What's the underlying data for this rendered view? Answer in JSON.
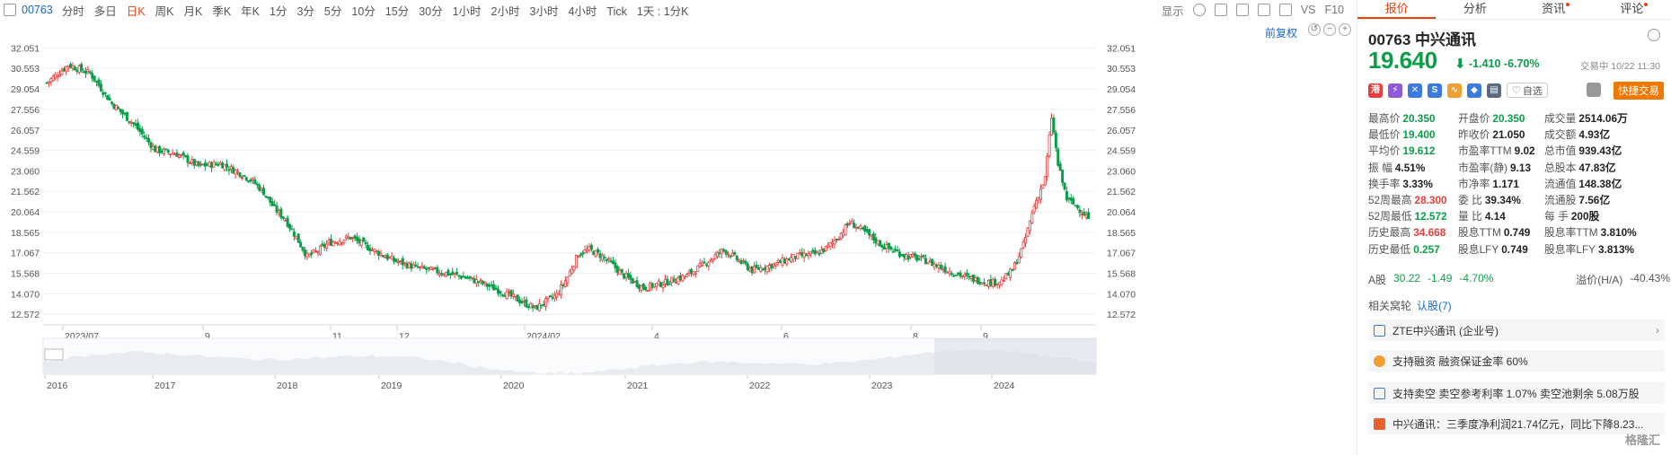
{
  "toolbar": {
    "code": "00763",
    "timeframes": [
      "分时",
      "多日",
      "日K",
      "周K",
      "月K",
      "季K",
      "年K",
      "1分",
      "3分",
      "5分",
      "10分",
      "15分",
      "30分",
      "1小时",
      "2小时",
      "3小时",
      "4小时",
      "Tick",
      "1天 : 1分K"
    ],
    "active_timeframe": "日K",
    "display_label": "显示",
    "vs_label": "VS",
    "f10_label": "F10"
  },
  "chart": {
    "restore_label": "前复权",
    "y_ticks": [
      "32.051",
      "30.553",
      "29.054",
      "27.556",
      "26.057",
      "24.559",
      "23.060",
      "21.562",
      "20.064",
      "18.565",
      "17.067",
      "15.568",
      "14.070",
      "12.572"
    ],
    "x_ticks": [
      "2023/07",
      "9",
      "11",
      "12",
      "2024/02",
      "4",
      "6",
      "8",
      "9"
    ],
    "nav_years": [
      "2016",
      "2017",
      "2018",
      "2019",
      "2020",
      "2021",
      "2022",
      "2023",
      "2024"
    ],
    "colors": {
      "up": "#e63d3d",
      "down": "#0a9e49",
      "grid": "#eef0f3"
    }
  },
  "chart_data": {
    "type": "candlestick",
    "ylim": [
      11.8,
      32.8
    ],
    "y_ticks": [
      32.051,
      30.553,
      29.054,
      27.556,
      26.057,
      24.559,
      23.06,
      21.562,
      20.064,
      18.565,
      17.067,
      15.568,
      14.07,
      12.572
    ],
    "x_ticks": [
      "2023/07",
      "9",
      "11",
      "12",
      "2024/02",
      "4",
      "6",
      "8",
      "9"
    ],
    "price_path": [
      [
        0,
        29.5
      ],
      [
        10,
        30.8
      ],
      [
        20,
        30.2
      ],
      [
        30,
        28.0
      ],
      [
        40,
        26.5
      ],
      [
        50,
        24.6
      ],
      [
        60,
        24.3
      ],
      [
        70,
        23.4
      ],
      [
        80,
        23.6
      ],
      [
        90,
        22.8
      ],
      [
        95,
        22.3
      ],
      [
        100,
        21.5
      ],
      [
        105,
        20.3
      ],
      [
        110,
        19.5
      ],
      [
        115,
        18.2
      ],
      [
        120,
        16.8
      ],
      [
        125,
        17.2
      ],
      [
        130,
        17.8
      ],
      [
        140,
        18.2
      ],
      [
        150,
        17.3
      ],
      [
        160,
        16.5
      ],
      [
        170,
        16.0
      ],
      [
        180,
        15.7
      ],
      [
        190,
        15.4
      ],
      [
        200,
        14.9
      ],
      [
        210,
        14.2
      ],
      [
        220,
        13.4
      ],
      [
        225,
        13.0
      ],
      [
        230,
        13.5
      ],
      [
        235,
        14.0
      ],
      [
        240,
        15.3
      ],
      [
        245,
        17.0
      ],
      [
        250,
        17.3
      ],
      [
        255,
        16.9
      ],
      [
        260,
        16.3
      ],
      [
        265,
        15.5
      ],
      [
        275,
        14.5
      ],
      [
        285,
        14.9
      ],
      [
        295,
        15.4
      ],
      [
        305,
        16.5
      ],
      [
        312,
        17.3
      ],
      [
        318,
        16.6
      ],
      [
        325,
        15.8
      ],
      [
        335,
        16.2
      ],
      [
        345,
        16.8
      ],
      [
        355,
        17.0
      ],
      [
        360,
        17.5
      ],
      [
        365,
        18.3
      ],
      [
        370,
        19.3
      ],
      [
        375,
        18.8
      ],
      [
        385,
        17.6
      ],
      [
        395,
        16.9
      ],
      [
        405,
        16.5
      ],
      [
        415,
        15.8
      ],
      [
        425,
        15.2
      ],
      [
        435,
        14.9
      ],
      [
        440,
        15.0
      ],
      [
        445,
        15.8
      ],
      [
        450,
        17.6
      ],
      [
        455,
        20.5
      ],
      [
        460,
        22.5
      ],
      [
        463,
        27.0
      ],
      [
        466,
        23.5
      ],
      [
        470,
        21.0
      ],
      [
        475,
        20.4
      ],
      [
        480,
        19.6
      ]
    ],
    "last": {
      "price": 19.64,
      "change": -1.41,
      "change_pct": -6.7
    }
  },
  "panel": {
    "tabs": [
      {
        "label": "报价",
        "active": true,
        "dot": false
      },
      {
        "label": "分析",
        "active": false,
        "dot": false
      },
      {
        "label": "资讯",
        "active": false,
        "dot": true
      },
      {
        "label": "评论",
        "active": false,
        "dot": true
      }
    ],
    "title": "00763 中兴通讯",
    "price": "19.640",
    "change": "-1.410 -6.70%",
    "status": "交易中 10/22 11:30",
    "favorite_label": "自选",
    "fast_trade_label": "快捷交易",
    "stats": [
      [
        {
          "l": "最高价",
          "v": "20.350",
          "c": "g"
        },
        {
          "l": "开盘价",
          "v": "20.350",
          "c": "g"
        },
        {
          "l": "成交量",
          "v": "2514.06万",
          "c": ""
        }
      ],
      [
        {
          "l": "最低价",
          "v": "19.400",
          "c": "g"
        },
        {
          "l": "昨收价",
          "v": "21.050",
          "c": ""
        },
        {
          "l": "成交额",
          "v": "4.93亿",
          "c": ""
        }
      ],
      [
        {
          "l": "平均价",
          "v": "19.612",
          "c": "g"
        },
        {
          "l": "市盈率TTM",
          "v": "9.02",
          "c": ""
        },
        {
          "l": "总市值",
          "v": "939.43亿",
          "c": ""
        }
      ],
      [
        {
          "l": "振    幅",
          "v": "4.51%",
          "c": ""
        },
        {
          "l": "市盈率(静)",
          "v": "9.13",
          "c": ""
        },
        {
          "l": "总股本",
          "v": "47.83亿",
          "c": ""
        }
      ],
      [
        {
          "l": "换手率",
          "v": "3.33%",
          "c": ""
        },
        {
          "l": "市净率",
          "v": "1.171",
          "c": ""
        },
        {
          "l": "流通值",
          "v": "148.38亿",
          "c": ""
        }
      ],
      [
        {
          "l": "52周最高",
          "v": "28.300",
          "c": "r"
        },
        {
          "l": "委    比",
          "v": "39.34%",
          "c": ""
        },
        {
          "l": "流通股",
          "v": "7.56亿",
          "c": ""
        }
      ],
      [
        {
          "l": "52周最低",
          "v": "12.572",
          "c": "g"
        },
        {
          "l": "量    比",
          "v": "4.14",
          "c": ""
        },
        {
          "l": "每    手",
          "v": "200股",
          "c": ""
        }
      ],
      [
        {
          "l": "历史最高",
          "v": "34.668",
          "c": "r"
        },
        {
          "l": "股息TTM",
          "v": "0.749",
          "c": ""
        },
        {
          "l": "股息率TTM",
          "v": "3.810%",
          "c": ""
        }
      ],
      [
        {
          "l": "历史最低",
          "v": "0.257",
          "c": "g"
        },
        {
          "l": "股息LFY",
          "v": "0.749",
          "c": ""
        },
        {
          "l": "股息率LFY",
          "v": "3.813%",
          "c": ""
        }
      ]
    ],
    "ashare": {
      "label": "A股",
      "price": "30.22",
      "change": "-1.49",
      "pct": "-4.70%",
      "premium_label": "溢价(H/A)",
      "premium": "-40.43%"
    },
    "related": {
      "label": "相关窝轮",
      "link": "认股(7)"
    },
    "info_rows": [
      "ZTE中兴通讯 (企业号)",
      "支持融资 融资保证金率 60%",
      "支持卖空 卖空参考利率 1.07% 卖空池剩余 5.08万股",
      "中兴通讯：三季度净利润21.74亿元，同比下降8.23..."
    ],
    "watermark": "格隆汇"
  }
}
